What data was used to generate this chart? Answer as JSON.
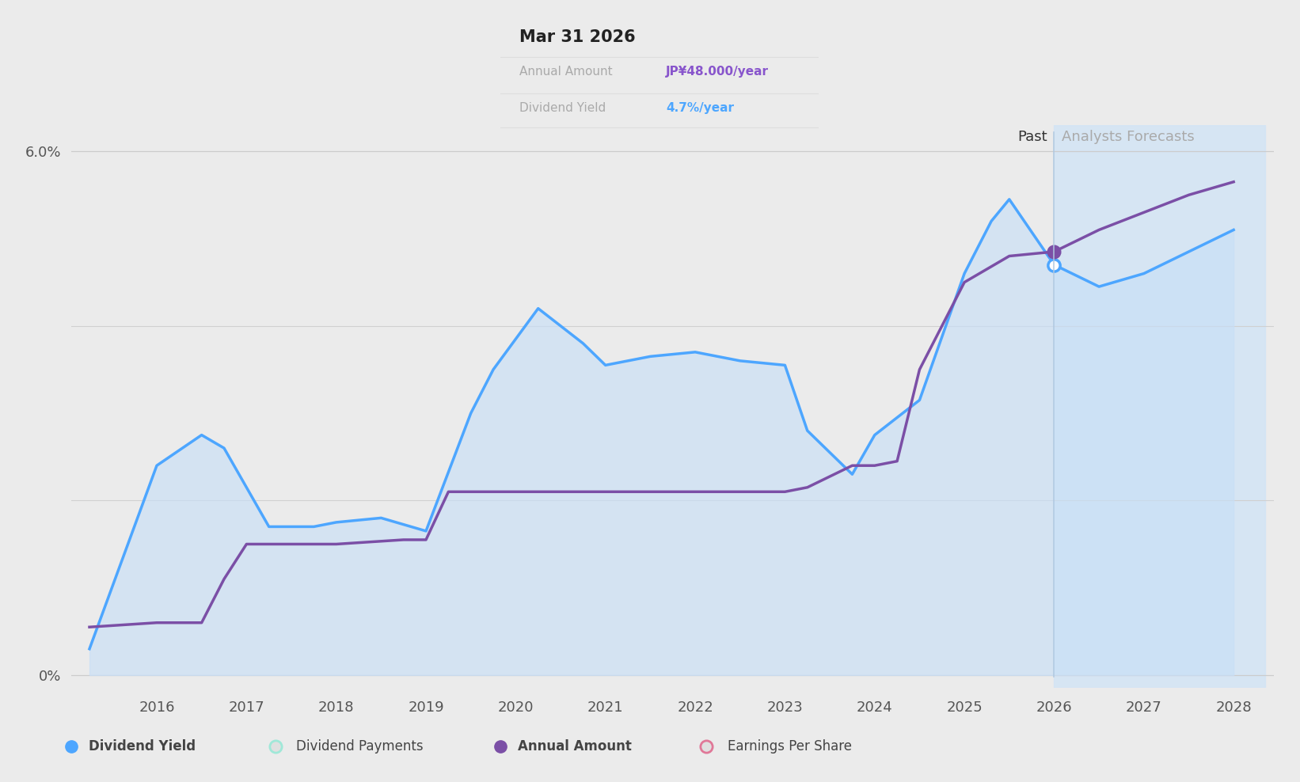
{
  "bg_color": "#ebebeb",
  "plot_bg_color": "#ebebeb",
  "grid_color": "#cccccc",
  "dividend_yield_x": [
    2015.25,
    2016.0,
    2016.5,
    2016.75,
    2017.25,
    2017.75,
    2018.0,
    2018.5,
    2019.0,
    2019.5,
    2019.75,
    2020.25,
    2020.75,
    2021.0,
    2021.5,
    2022.0,
    2022.5,
    2023.0,
    2023.25,
    2023.75,
    2024.0,
    2024.5,
    2025.0,
    2025.3,
    2025.5,
    2026.0,
    2026.5,
    2027.0,
    2027.5,
    2028.0
  ],
  "dividend_yield_y": [
    0.3,
    2.4,
    2.75,
    2.6,
    1.7,
    1.7,
    1.75,
    1.8,
    1.65,
    3.0,
    3.5,
    4.2,
    3.8,
    3.55,
    3.65,
    3.7,
    3.6,
    3.55,
    2.8,
    2.3,
    2.75,
    3.15,
    4.6,
    5.2,
    5.45,
    4.7,
    4.45,
    4.6,
    4.85,
    5.1
  ],
  "dividend_yield_color": "#4da6ff",
  "dividend_yield_fill_color": "#c8dff7",
  "annual_amount_x": [
    2015.25,
    2016.0,
    2016.5,
    2016.75,
    2017.0,
    2017.25,
    2018.0,
    2018.75,
    2019.0,
    2019.25,
    2020.0,
    2021.0,
    2021.5,
    2022.0,
    2022.5,
    2023.0,
    2023.25,
    2023.75,
    2024.0,
    2024.25,
    2024.5,
    2025.0,
    2025.25,
    2025.5,
    2026.0,
    2026.5,
    2027.0,
    2027.5,
    2028.0
  ],
  "annual_amount_y": [
    0.55,
    0.6,
    0.6,
    1.1,
    1.5,
    1.5,
    1.5,
    1.55,
    1.55,
    2.1,
    2.1,
    2.1,
    2.1,
    2.1,
    2.1,
    2.1,
    2.15,
    2.4,
    2.4,
    2.45,
    3.5,
    4.5,
    4.65,
    4.8,
    4.85,
    5.1,
    5.3,
    5.5,
    5.65
  ],
  "annual_amount_color": "#7b4fa6",
  "past_boundary": 2026.0,
  "forecast_shade_x_end": 2028.35,
  "ylim_min": -0.15,
  "ylim_max": 6.3,
  "xlim_min": 2015.05,
  "xlim_max": 2028.45,
  "xticks": [
    2016,
    2017,
    2018,
    2019,
    2020,
    2021,
    2022,
    2023,
    2024,
    2025,
    2026,
    2027,
    2028
  ],
  "tooltip_title": "Mar 31 2026",
  "tooltip_row1_label": "Annual Amount",
  "tooltip_row1_value": "JP¥48.000/year",
  "tooltip_row2_label": "Dividend Yield",
  "tooltip_row2_value": "4.7%/year",
  "tooltip_value1_color": "#8855cc",
  "tooltip_value2_color": "#4da6ff",
  "past_label": "Past",
  "forecast_label": "Analysts Forecasts",
  "legend_items": [
    {
      "label": "Dividend Yield",
      "color": "#4da6ff",
      "filled": true,
      "bold": true
    },
    {
      "label": "Dividend Payments",
      "color": "#a0e8d8",
      "filled": false,
      "bold": false
    },
    {
      "label": "Annual Amount",
      "color": "#7b4fa6",
      "filled": true,
      "bold": true
    },
    {
      "label": "Earnings Per Share",
      "color": "#e07898",
      "filled": false,
      "bold": false
    }
  ]
}
